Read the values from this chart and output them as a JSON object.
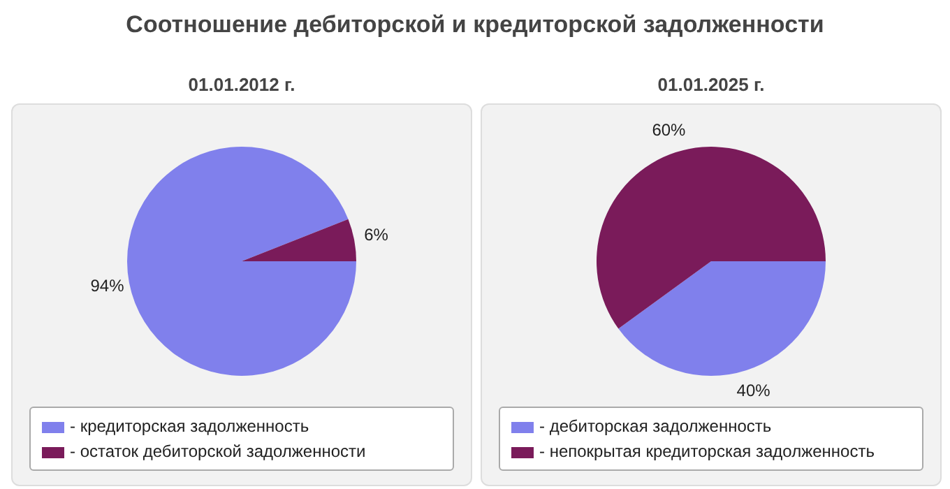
{
  "chart_data": [
    {
      "type": "pie",
      "title": "Соотношение дебиторской и кредиторской задолженности",
      "subtitle": "01.01.2012 г.",
      "categories": [
        "- кредиторская задолженность",
        "- остаток дебиторской задолженности"
      ],
      "values": [
        94,
        6
      ],
      "colors": [
        "#8080ec",
        "#7a1b5a"
      ],
      "value_labels": [
        "94%",
        "6%"
      ],
      "legend": "bottom"
    },
    {
      "type": "pie",
      "subtitle": "01.01.2025 г.",
      "categories": [
        "- дебиторская задолженность",
        "- непокрытая кредиторская задолженность"
      ],
      "values": [
        40,
        60
      ],
      "colors": [
        "#8080ec",
        "#7a1b5a"
      ],
      "value_labels": [
        "40%",
        "60%"
      ],
      "legend": "bottom"
    }
  ]
}
